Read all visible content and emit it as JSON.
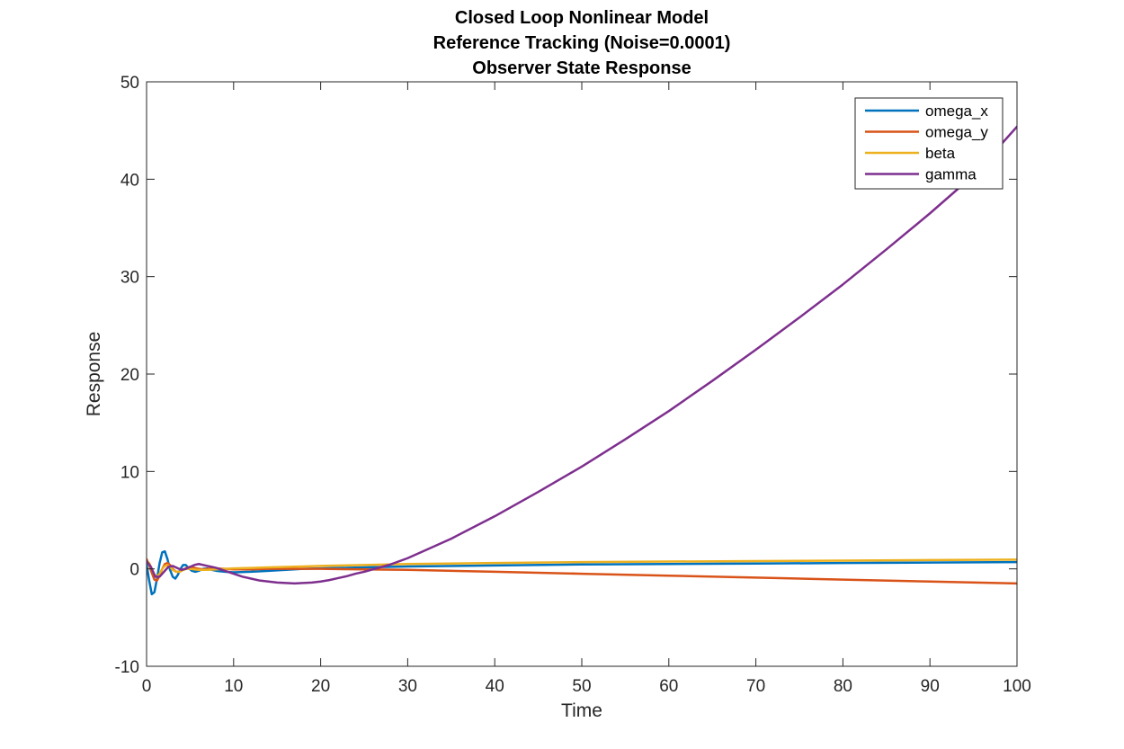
{
  "chart_data": {
    "type": "line",
    "title": [
      "Closed Loop Nonlinear Model",
      "Reference Tracking (Noise=0.0001)",
      "Observer State Response"
    ],
    "xlabel": "Time",
    "ylabel": "Response",
    "xlim": [
      0,
      100
    ],
    "ylim": [
      -10,
      50
    ],
    "xticks": [
      0,
      10,
      20,
      30,
      40,
      50,
      60,
      70,
      80,
      90,
      100
    ],
    "yticks": [
      -10,
      0,
      10,
      20,
      30,
      40,
      50
    ],
    "grid": false,
    "legend_position": "top-right",
    "series": [
      {
        "name": "omega_x",
        "color": "#0072BD",
        "x": [
          0,
          0.3,
          0.6,
          0.9,
          1.2,
          1.5,
          1.8,
          2.1,
          2.4,
          2.7,
          3.0,
          3.3,
          3.6,
          3.9,
          4.2,
          4.5,
          4.8,
          5.2,
          5.6,
          6,
          6.5,
          7,
          7.5,
          8,
          9,
          10,
          12,
          14,
          16,
          18,
          20,
          25,
          30,
          40,
          50,
          60,
          70,
          80,
          90,
          100
        ],
        "y": [
          0.5,
          -1.2,
          -2.6,
          -2.4,
          -1.0,
          0.6,
          1.7,
          1.8,
          1.0,
          -0.1,
          -0.8,
          -1.0,
          -0.6,
          0.0,
          0.4,
          0.4,
          0.1,
          -0.2,
          -0.3,
          -0.2,
          0.0,
          0.05,
          -0.1,
          -0.2,
          -0.3,
          -0.35,
          -0.3,
          -0.2,
          -0.1,
          0.0,
          0.05,
          0.15,
          0.25,
          0.35,
          0.45,
          0.5,
          0.55,
          0.6,
          0.65,
          0.7
        ]
      },
      {
        "name": "omega_y",
        "color": "#D95319",
        "x": [
          0,
          0.3,
          0.6,
          0.9,
          1.2,
          1.5,
          1.8,
          2.1,
          2.4,
          2.7,
          3.0,
          3.4,
          3.8,
          4.2,
          4.6,
          5.0,
          5.5,
          6,
          6.5,
          7,
          8,
          9,
          10,
          12,
          14,
          16,
          18,
          20,
          25,
          30,
          40,
          50,
          60,
          70,
          80,
          90,
          100
        ],
        "y": [
          1.0,
          0.4,
          -0.4,
          -1.1,
          -1.2,
          -0.7,
          0.0,
          0.5,
          0.6,
          0.4,
          0.0,
          -0.3,
          -0.3,
          -0.1,
          0.1,
          0.2,
          0.1,
          0.0,
          -0.05,
          0.0,
          0.05,
          0.0,
          -0.05,
          -0.05,
          0.0,
          0.0,
          0.0,
          0.0,
          -0.05,
          -0.1,
          -0.3,
          -0.5,
          -0.7,
          -0.9,
          -1.1,
          -1.3,
          -1.5
        ]
      },
      {
        "name": "beta",
        "color": "#EDB120",
        "x": [
          0,
          0.3,
          0.6,
          0.9,
          1.2,
          1.5,
          1.8,
          2.1,
          2.4,
          2.7,
          3.0,
          3.4,
          3.8,
          4.2,
          4.6,
          5.0,
          5.5,
          6,
          7,
          8,
          9,
          10,
          12,
          14,
          16,
          18,
          20,
          25,
          30,
          40,
          50,
          60,
          70,
          80,
          90,
          100
        ],
        "y": [
          0.8,
          0.6,
          0.0,
          -0.6,
          -0.8,
          -0.5,
          0.0,
          0.3,
          0.4,
          0.2,
          -0.1,
          -0.3,
          -0.3,
          -0.1,
          0.0,
          0.0,
          -0.05,
          -0.1,
          -0.1,
          -0.05,
          0.0,
          0.05,
          0.1,
          0.15,
          0.2,
          0.25,
          0.3,
          0.4,
          0.5,
          0.6,
          0.7,
          0.75,
          0.8,
          0.85,
          0.9,
          0.95
        ]
      },
      {
        "name": "gamma",
        "color": "#7E2F8E",
        "x": [
          0,
          0.5,
          1.0,
          1.5,
          2.0,
          2.5,
          3.0,
          3.5,
          4.0,
          4.5,
          5.0,
          5.5,
          6.0,
          6.5,
          7.0,
          7.5,
          8.0,
          9,
          10,
          11,
          12,
          13,
          14,
          15,
          16,
          17,
          18,
          19,
          20,
          21,
          22,
          23,
          24,
          25,
          26,
          27,
          28,
          30,
          32,
          35,
          40,
          45,
          50,
          55,
          60,
          65,
          70,
          75,
          80,
          85,
          90,
          95,
          100
        ],
        "y": [
          0.8,
          0.2,
          -0.8,
          -0.8,
          -0.3,
          0.2,
          0.3,
          0.1,
          -0.1,
          0.0,
          0.2,
          0.4,
          0.5,
          0.4,
          0.3,
          0.2,
          0.1,
          -0.2,
          -0.5,
          -0.8,
          -1.0,
          -1.2,
          -1.3,
          -1.4,
          -1.45,
          -1.5,
          -1.45,
          -1.4,
          -1.3,
          -1.15,
          -0.95,
          -0.75,
          -0.5,
          -0.3,
          -0.05,
          0.2,
          0.45,
          1.1,
          1.9,
          3.1,
          5.4,
          7.9,
          10.5,
          13.3,
          16.2,
          19.3,
          22.5,
          25.8,
          29.2,
          32.8,
          36.5,
          40.4,
          45.4
        ]
      }
    ]
  }
}
